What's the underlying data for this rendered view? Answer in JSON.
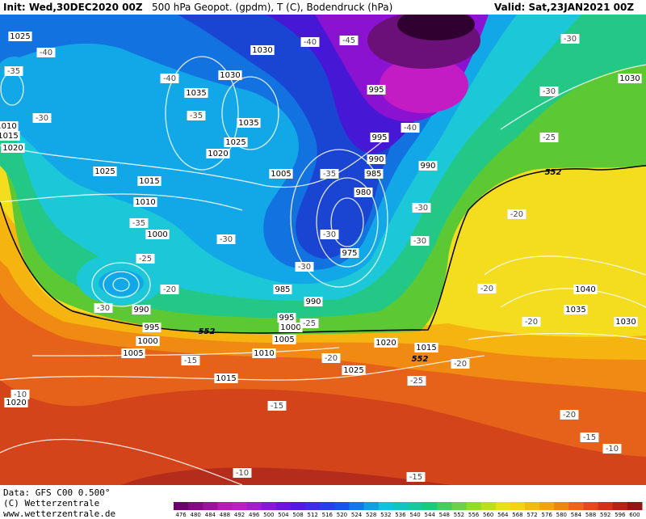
{
  "header": {
    "init": "Init: Wed,30DEC2020 00Z",
    "title": "500 hPa Geopot. (gpdm), T (C), Bodendruck (hPa)",
    "valid": "Valid: Sat,23JAN2021 00Z"
  },
  "map": {
    "pressure_labels": [
      1025,
      1030,
      1030,
      1035,
      1035,
      1025,
      1020,
      1025,
      1015,
      1010,
      1000,
      1005,
      995,
      995,
      990,
      985,
      980,
      975,
      990,
      985,
      990,
      995,
      1000,
      1005,
      990,
      995,
      1000,
      1005,
      1010,
      1015,
      1020,
      1015,
      1025,
      1020,
      1040,
      1035,
      1030,
      1030,
      1030,
      1010,
      1015,
      1020
    ],
    "temperature_labels": [
      -40,
      -35,
      -40,
      -35,
      -30,
      -40,
      -45,
      -40,
      -35,
      -30,
      -30,
      -30,
      -35,
      -25,
      -20,
      -30,
      -30,
      -30,
      -25,
      -30,
      -25,
      -20,
      -20,
      -20,
      -20,
      -25,
      -20,
      -15,
      -15,
      -10,
      -20,
      -15,
      -10,
      -10,
      -15,
      -30
    ],
    "height_labels": [
      552,
      552,
      552
    ]
  },
  "footer": {
    "lines": [
      "Data: GFS C00 0.500°",
      "(C) Wetterzentrale",
      "www.wetterzentrale.de"
    ]
  },
  "scale": {
    "labels": [
      476,
      480,
      484,
      488,
      492,
      496,
      500,
      504,
      508,
      512,
      516,
      520,
      524,
      528,
      532,
      536,
      540,
      544,
      548,
      552,
      556,
      560,
      564,
      568,
      572,
      576,
      580,
      584,
      588,
      592,
      596,
      600
    ]
  }
}
